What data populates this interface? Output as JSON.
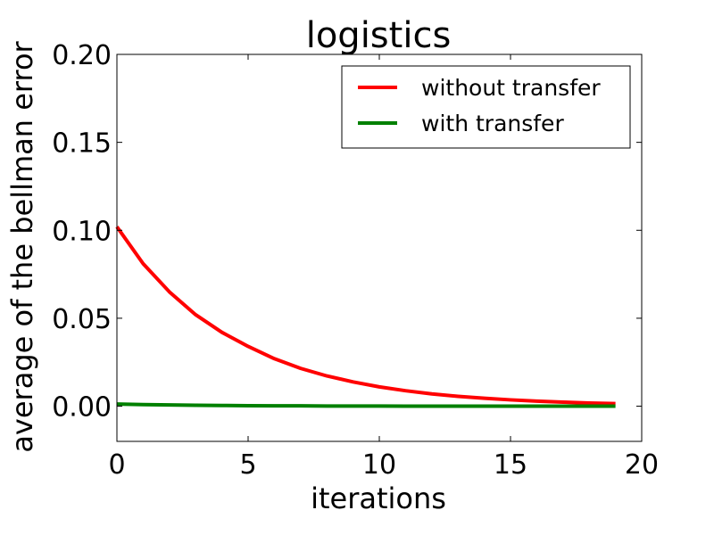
{
  "chart_data": {
    "type": "line",
    "title": "logistics",
    "xlabel": "iterations",
    "ylabel": "average of the bellman error",
    "xlim": [
      0,
      20
    ],
    "ylim": [
      -0.02,
      0.2
    ],
    "xticks": [
      0,
      5,
      10,
      15,
      20
    ],
    "yticks": [
      0.0,
      0.05,
      0.1,
      0.15,
      0.2
    ],
    "xtick_labels": [
      "0",
      "5",
      "10",
      "15",
      "20"
    ],
    "ytick_labels": [
      "0.00",
      "0.05",
      "0.10",
      "0.15",
      "0.20"
    ],
    "grid": false,
    "legend_position": "top-right",
    "x": [
      0,
      1,
      2,
      3,
      4,
      5,
      6,
      7,
      8,
      9,
      10,
      11,
      12,
      13,
      14,
      15,
      16,
      17,
      18,
      19
    ],
    "series": [
      {
        "name": "without transfer",
        "color": "#ff0000",
        "values": [
          0.102,
          0.081,
          0.065,
          0.052,
          0.042,
          0.034,
          0.027,
          0.0215,
          0.0172,
          0.0138,
          0.011,
          0.0088,
          0.007,
          0.0056,
          0.0045,
          0.0036,
          0.0029,
          0.0023,
          0.0018,
          0.0015
        ]
      },
      {
        "name": "with transfer",
        "color": "#008000",
        "values": [
          0.0012,
          0.0009,
          0.0007,
          0.0005,
          0.0004,
          0.0003,
          0.0002,
          0.0002,
          0.0001,
          0.0001,
          0.0001,
          0.0,
          0.0,
          0.0,
          0.0,
          0.0,
          0.0,
          0.0,
          0.0,
          0.0
        ]
      }
    ]
  }
}
